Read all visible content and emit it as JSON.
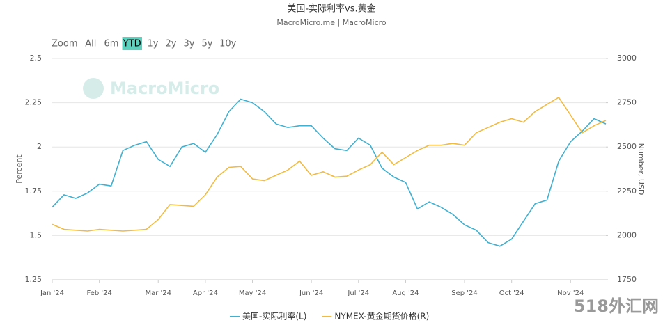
{
  "chart_data": {
    "type": "line",
    "title": "美国-实际利率vs.黄金",
    "subtitle": "MacroMicro.me | MacroMicro",
    "range_selector": {
      "label": "Zoom",
      "buttons": [
        "All",
        "6m",
        "YTD",
        "1y",
        "2y",
        "3y",
        "5y",
        "10y"
      ],
      "selected": 2
    },
    "watermark": "MacroMicro",
    "corner_watermark": "518外汇网",
    "ylabel": "Percent",
    "y2label": "Number, USD",
    "categories": [
      "Jan '24",
      null,
      null,
      null,
      "Feb '24",
      null,
      null,
      null,
      null,
      "Mar '24",
      null,
      null,
      null,
      "Apr '24",
      null,
      null,
      null,
      "May '24",
      null,
      null,
      null,
      null,
      "Jun '24",
      null,
      null,
      null,
      "Jul '24",
      null,
      null,
      null,
      "Aug '24",
      null,
      null,
      null,
      null,
      "Sep '24",
      null,
      null,
      null,
      "Oct '24",
      null,
      null,
      null,
      null,
      "Nov '24",
      null,
      null,
      null
    ],
    "series": [
      {
        "name": "美国-实际利率(L)",
        "color": "#41b0cf",
        "axis": "y",
        "values": [
          1.66,
          1.73,
          1.71,
          1.74,
          1.79,
          1.78,
          1.98,
          2.01,
          2.03,
          1.93,
          1.89,
          2.0,
          2.02,
          1.97,
          2.07,
          2.2,
          2.27,
          2.25,
          2.2,
          2.13,
          2.11,
          2.12,
          2.12,
          2.05,
          1.99,
          1.98,
          2.05,
          2.01,
          1.88,
          1.83,
          1.8,
          1.65,
          1.69,
          1.66,
          1.62,
          1.56,
          1.53,
          1.46,
          1.44,
          1.48,
          1.58,
          1.68,
          1.7,
          1.92,
          2.03,
          2.09,
          2.16,
          2.13
        ]
      },
      {
        "name": "NYMEX-黄金期货价格(R)",
        "color": "#f0bb40",
        "axis": "y2",
        "values": [
          2063,
          2035,
          2030,
          2025,
          2035,
          2030,
          2025,
          2030,
          2035,
          2090,
          2175,
          2170,
          2165,
          2230,
          2330,
          2385,
          2390,
          2320,
          2310,
          2340,
          2370,
          2420,
          2340,
          2360,
          2330,
          2335,
          2370,
          2400,
          2470,
          2400,
          2440,
          2480,
          2510,
          2510,
          2520,
          2510,
          2580,
          2610,
          2640,
          2660,
          2640,
          2700,
          2740,
          2780,
          2680,
          2580,
          2620,
          2650
        ]
      }
    ],
    "ylim": [
      1.25,
      2.5
    ],
    "yticks": [
      1.25,
      1.5,
      1.75,
      2,
      2.25,
      2.5
    ],
    "y2lim": [
      1750,
      3000
    ],
    "y2ticks": [
      1750,
      2000,
      2250,
      2500,
      2750,
      3000
    ],
    "grid": true
  }
}
